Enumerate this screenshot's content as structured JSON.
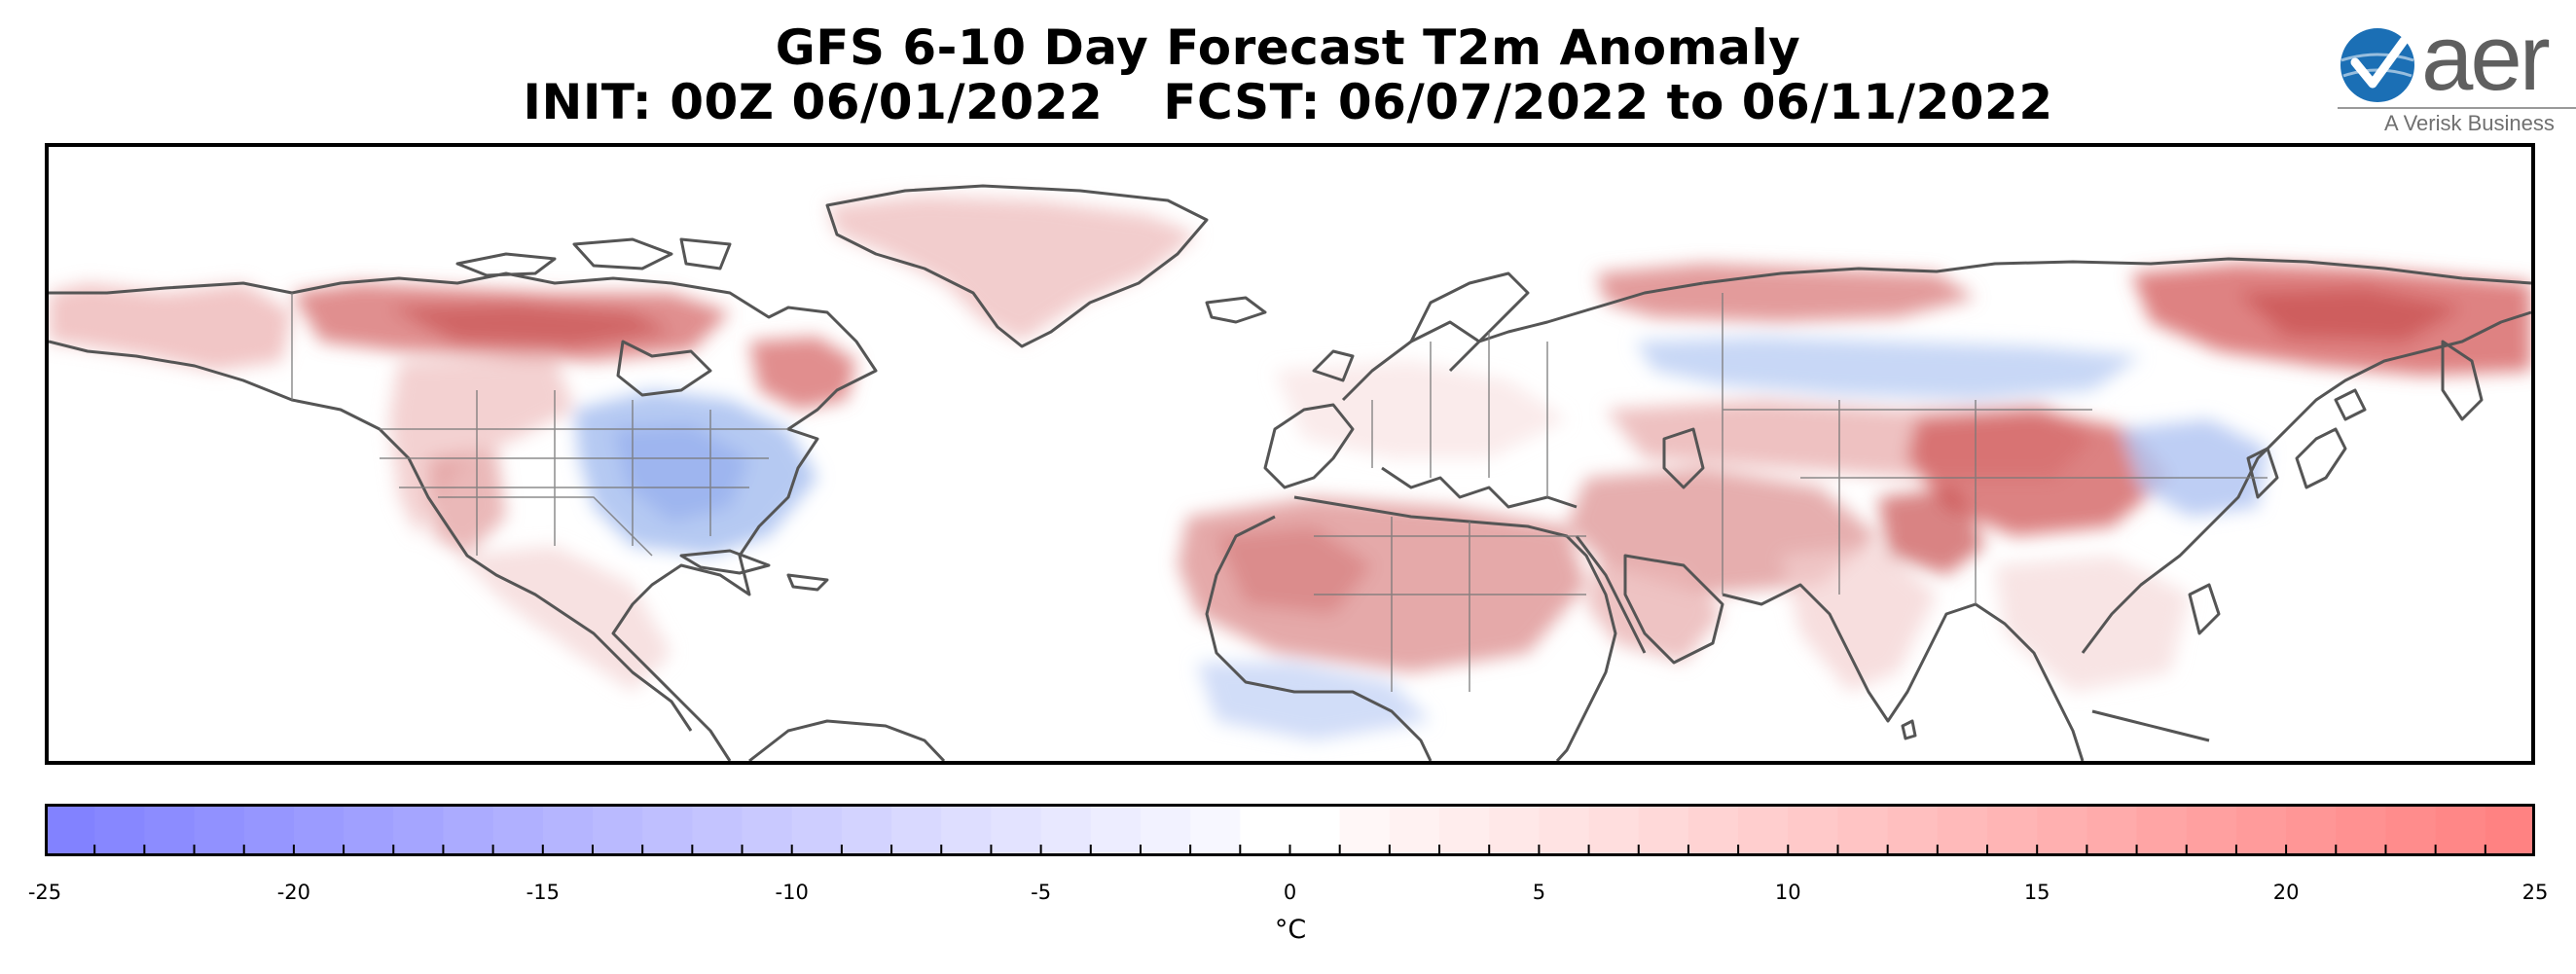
{
  "title": {
    "line1": "GFS 6-10 Day Forecast T2m Anomaly",
    "init": "INIT: 00Z 06/01/2022",
    "fcst": "FCST: 06/07/2022 to 06/11/2022"
  },
  "logo": {
    "word": "aer",
    "tagline": "A Verisk Business",
    "colors": {
      "globe": "#1b6fb5",
      "check": "#ffffff",
      "text": "#5f5f5f"
    }
  },
  "map": {
    "projection": "equirectangular",
    "coverage": "North America, Atlantic, Europe, Africa (north), Asia",
    "coastline_color": "#555555",
    "field": "2 m temperature anomaly",
    "anomaly_regions": [
      {
        "area": "northern Canada",
        "sign": "warm",
        "strength": "strong"
      },
      {
        "area": "Alaska / Yukon",
        "sign": "warm",
        "strength": "moderate"
      },
      {
        "area": "Labrador / Quebec",
        "sign": "warm",
        "strength": "strong"
      },
      {
        "area": "Greenland",
        "sign": "warm",
        "strength": "weak"
      },
      {
        "area": "central and eastern United States",
        "sign": "cold",
        "strength": "moderate"
      },
      {
        "area": "US Southwest",
        "sign": "warm",
        "strength": "moderate"
      },
      {
        "area": "Sahara / North Africa",
        "sign": "warm",
        "strength": "moderate"
      },
      {
        "area": "Middle East",
        "sign": "warm",
        "strength": "moderate"
      },
      {
        "area": "Central Asia / Tibet",
        "sign": "warm",
        "strength": "strong"
      },
      {
        "area": "Eastern Siberia",
        "sign": "warm",
        "strength": "strong"
      },
      {
        "area": "Northern Russia (Arctic coast)",
        "sign": "warm",
        "strength": "moderate"
      },
      {
        "area": "Western Siberia belt",
        "sign": "cold",
        "strength": "weak"
      },
      {
        "area": "Northeast China / Korea",
        "sign": "cold",
        "strength": "weak"
      },
      {
        "area": "Gulf of Guinea coast",
        "sign": "cold",
        "strength": "weak"
      }
    ]
  },
  "colorbar": {
    "min": -25,
    "max": 25,
    "step": 1,
    "ticks": [
      -25,
      -20,
      -15,
      -10,
      -5,
      0,
      5,
      10,
      15,
      20,
      25
    ],
    "tick_labels": [
      "-25",
      "-20",
      "-15",
      "-10",
      "-5",
      "0",
      "5",
      "10",
      "15",
      "20",
      "25"
    ],
    "unit": "°C",
    "colors": {
      "cold_end": "#7f7fff",
      "center": "#ffffff",
      "warm_end": "#ff7f7f"
    }
  }
}
